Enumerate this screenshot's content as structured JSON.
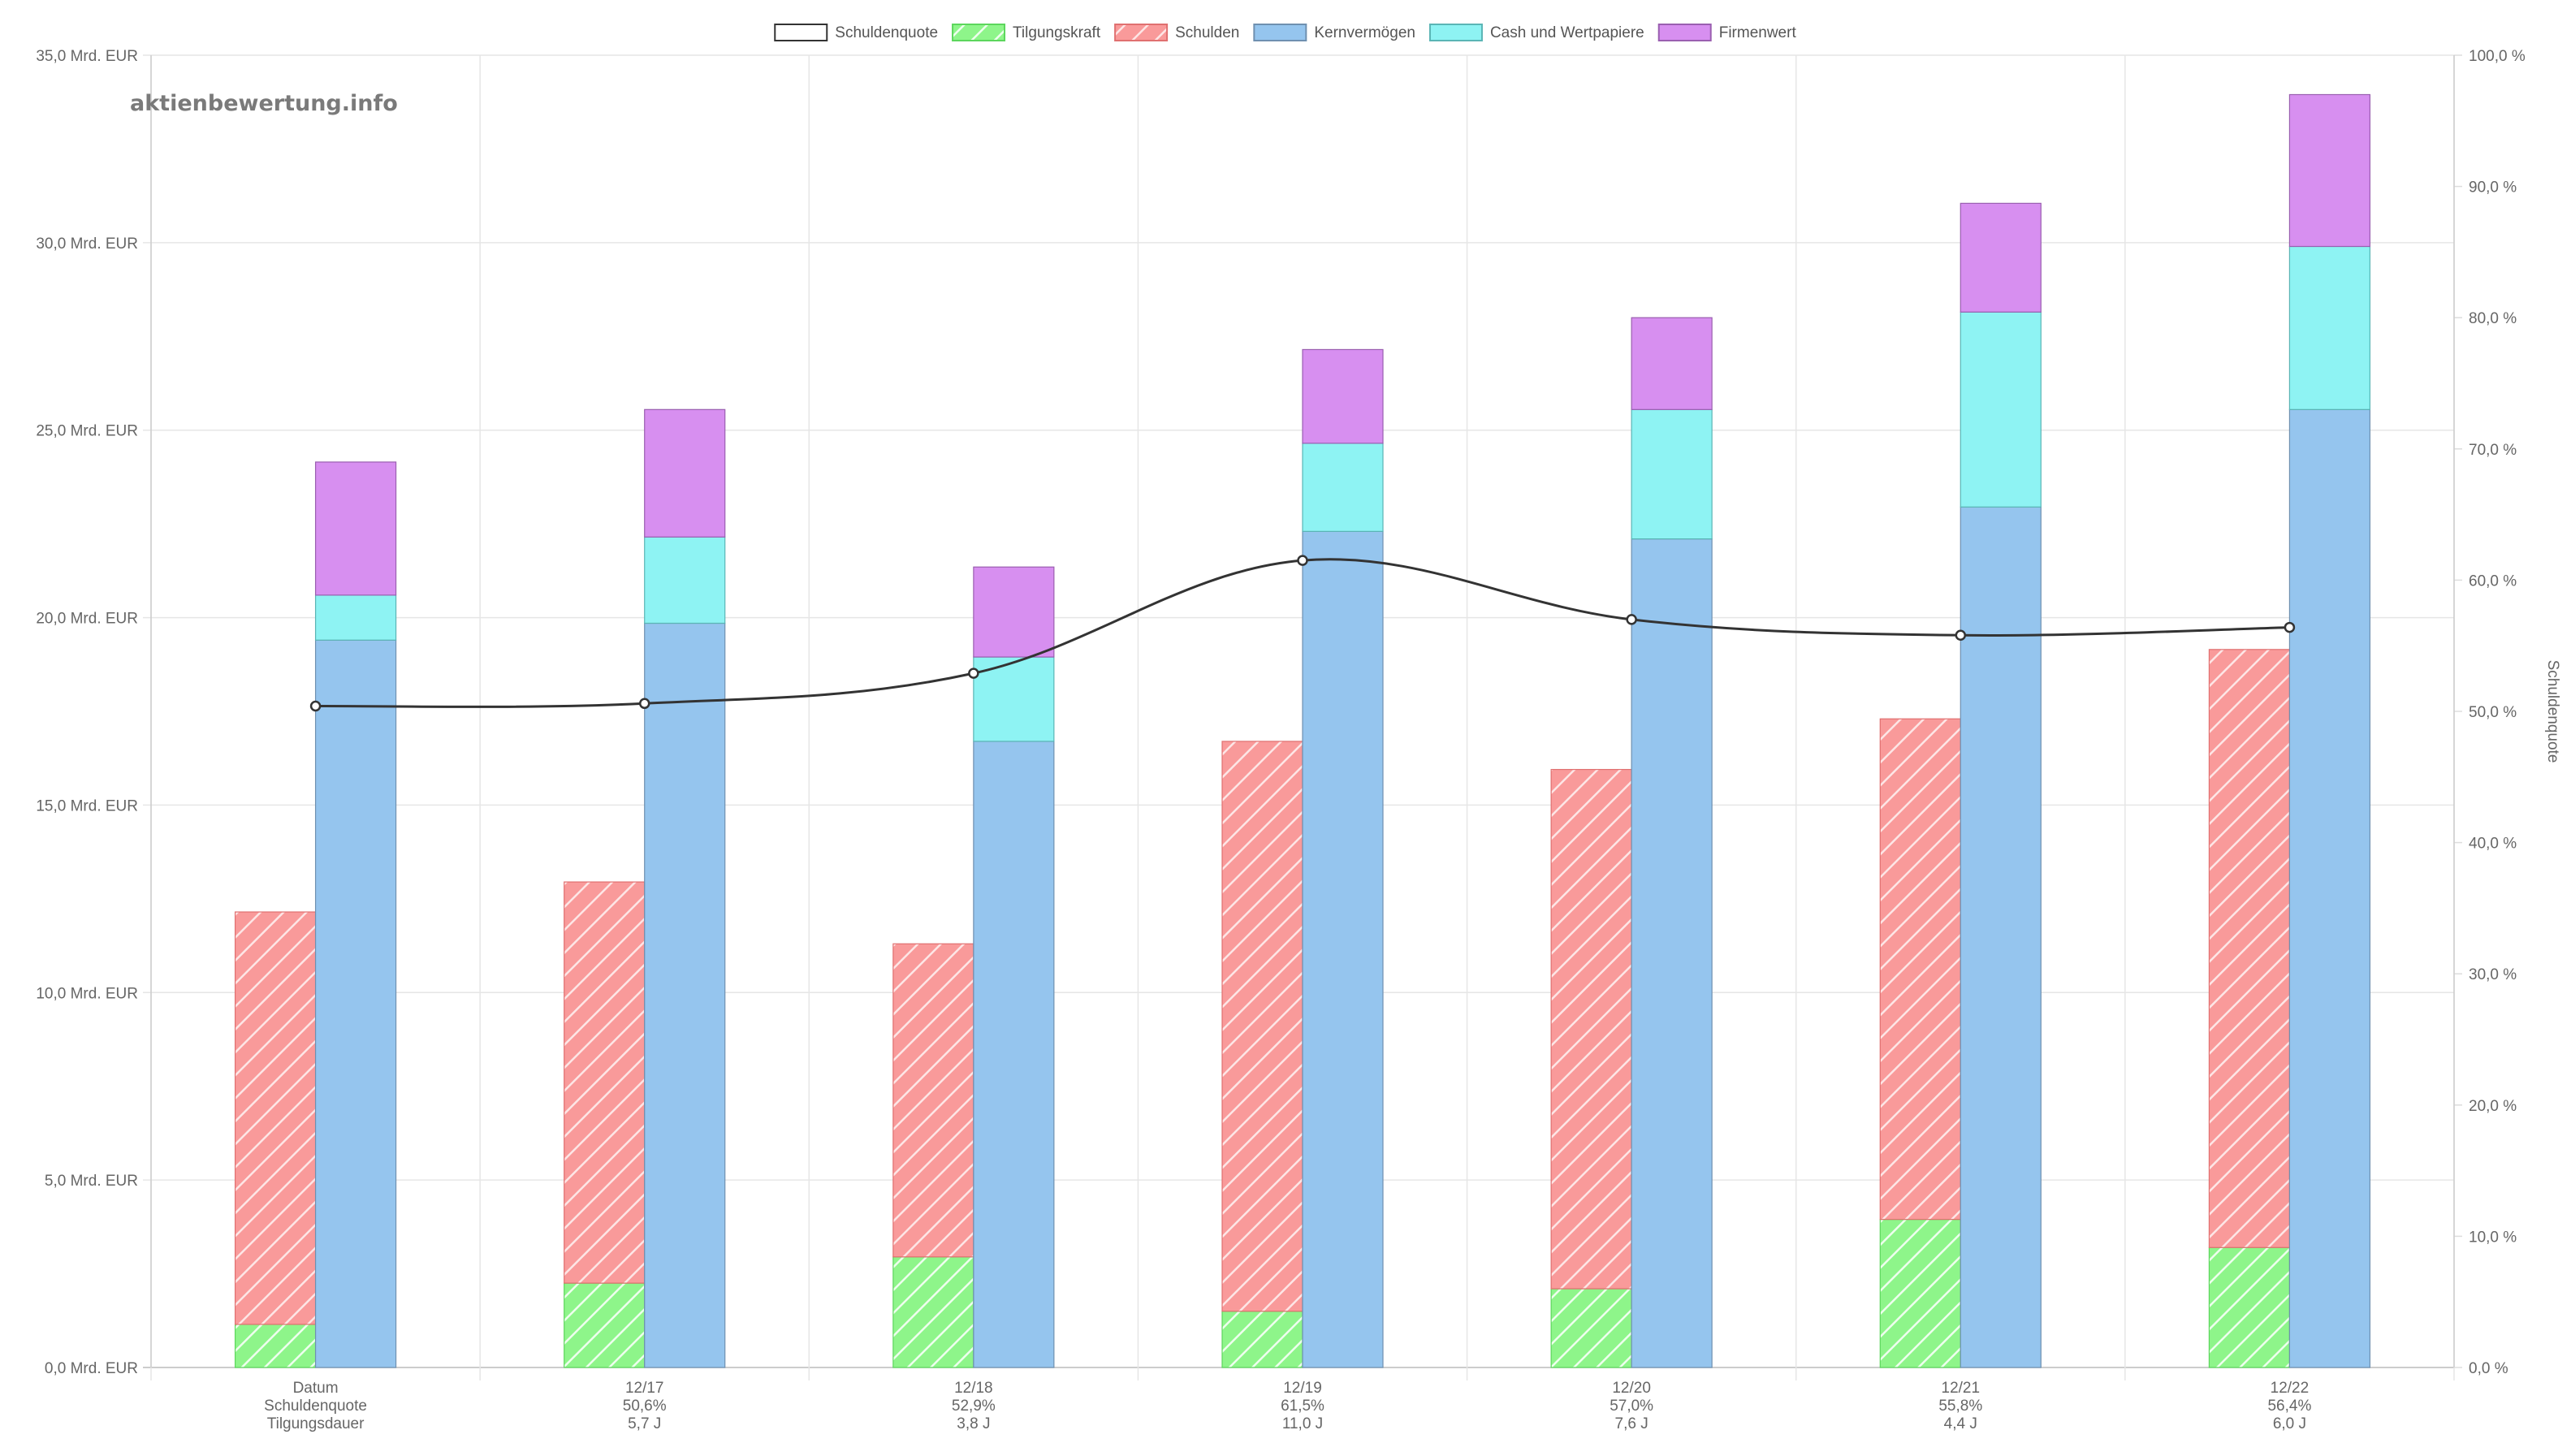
{
  "watermark": "aktienbewertung.info",
  "chart_data": {
    "type": "bar",
    "categories": [
      "",
      "12/17",
      "12/18",
      "12/19",
      "12/20",
      "12/21",
      "12/22"
    ],
    "x_label_lines": [
      [
        "Datum",
        "Schuldenquote",
        "Tilgungsdauer"
      ],
      [
        "12/17",
        "50,6%",
        "5,7 J"
      ],
      [
        "12/18",
        "52,9%",
        "3,8 J"
      ],
      [
        "12/19",
        "61,5%",
        "11,0 J"
      ],
      [
        "12/20",
        "57,0%",
        "7,6 J"
      ],
      [
        "12/21",
        "55,8%",
        "4,4 J"
      ],
      [
        "12/22",
        "56,4%",
        "6,0 J"
      ]
    ],
    "legend": [
      {
        "name": "Schuldenquote",
        "color": "#ffffff",
        "stroke": "#333333",
        "pattern": false
      },
      {
        "name": "Tilgungskraft",
        "color": "#8ef58a",
        "stroke": "#5cd65c",
        "pattern": true
      },
      {
        "name": "Schulden",
        "color": "#f99a9a",
        "stroke": "#e07070",
        "pattern": true
      },
      {
        "name": "Kernvermögen",
        "color": "#95c5ee",
        "stroke": "#6f90b0",
        "pattern": false
      },
      {
        "name": "Cash und Wertpapiere",
        "color": "#8ef3f3",
        "stroke": "#5ab5b5",
        "pattern": false
      },
      {
        "name": "Firmenwert",
        "color": "#d78ff0",
        "stroke": "#9a5fb0",
        "pattern": false
      }
    ],
    "left_stack": [
      {
        "name": "Tilgungskraft",
        "values": [
          1.15,
          2.25,
          2.95,
          1.5,
          2.1,
          3.95,
          3.2
        ]
      },
      {
        "name": "Schulden",
        "values": [
          11.0,
          10.7,
          8.35,
          15.2,
          13.85,
          13.35,
          15.95
        ]
      }
    ],
    "right_stack": [
      {
        "name": "Kernvermögen",
        "values": [
          19.4,
          19.85,
          16.7,
          22.3,
          22.1,
          22.95,
          25.55
        ]
      },
      {
        "name": "Cash und Wertpapiere",
        "values": [
          1.2,
          2.3,
          2.25,
          2.35,
          3.45,
          5.2,
          4.35
        ]
      },
      {
        "name": "Firmenwert",
        "values": [
          3.55,
          3.4,
          2.4,
          2.5,
          2.45,
          2.9,
          4.05
        ]
      }
    ],
    "line": {
      "name": "Schuldenquote",
      "values": [
        50.4,
        50.6,
        52.9,
        61.5,
        57.0,
        55.8,
        56.4
      ],
      "color": "#333333"
    },
    "y_left": {
      "min": 0,
      "max": 35,
      "step": 5,
      "ticks": [
        "0,0 Mrd. EUR",
        "5,0 Mrd. EUR",
        "10,0 Mrd. EUR",
        "15,0 Mrd. EUR",
        "20,0 Mrd. EUR",
        "25,0 Mrd. EUR",
        "30,0 Mrd. EUR",
        "35,0 Mrd. EUR"
      ]
    },
    "y_right": {
      "min": 0,
      "max": 100,
      "step": 10,
      "label": "Schuldenquote",
      "ticks": [
        "0,0 %",
        "10,0 %",
        "20,0 %",
        "30,0 %",
        "40,0 %",
        "50,0 %",
        "60,0 %",
        "70,0 %",
        "80,0 %",
        "90,0 %",
        "100,0 %"
      ]
    },
    "grid": true,
    "legend_position": "top"
  }
}
